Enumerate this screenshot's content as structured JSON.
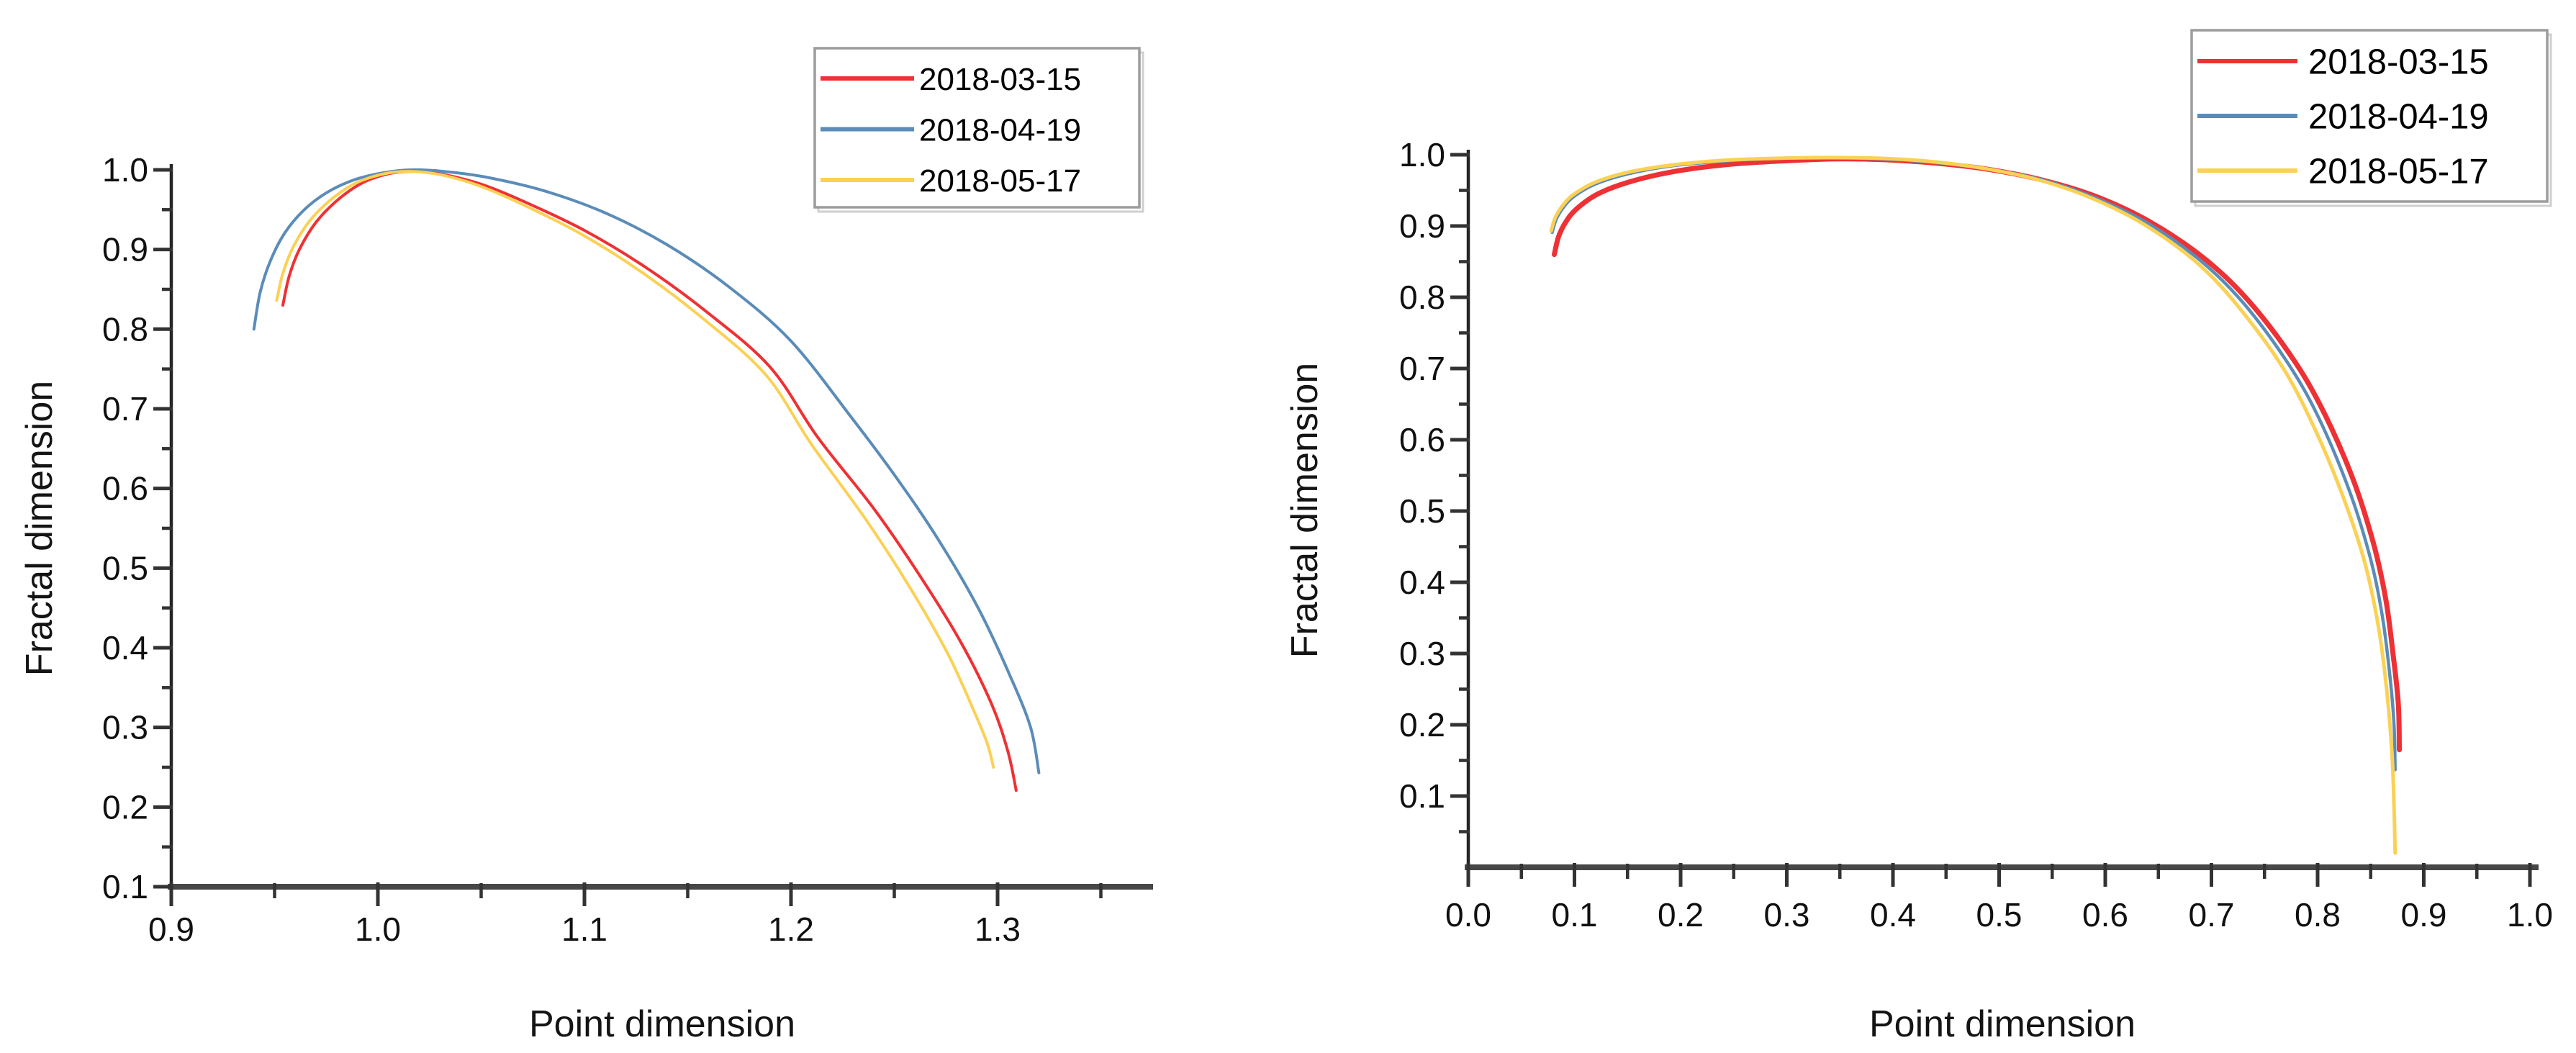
{
  "chart_data": [
    {
      "id": "left",
      "type": "line",
      "xlabel": "Point dimension",
      "ylabel": "Fractal dimension",
      "xlim": [
        0.9,
        1.375
      ],
      "ylim": [
        0.1,
        1.0
      ],
      "x_major_ticks": [
        0.9,
        1.0,
        1.1,
        1.2,
        1.3
      ],
      "x_minor_ticks": [
        0.95,
        1.05,
        1.15,
        1.25,
        1.35
      ],
      "y_major_ticks": [
        0.1,
        0.2,
        0.3,
        0.4,
        0.5,
        0.6,
        0.7,
        0.8,
        0.9,
        1.0
      ],
      "y_minor_ticks": [
        0.15,
        0.25,
        0.35,
        0.45,
        0.55,
        0.65,
        0.75,
        0.85,
        0.95
      ],
      "grid": false,
      "legend_position": "top-right-inside",
      "series": [
        {
          "name": "2018-03-15",
          "color": "#ee3134",
          "line_width": 4,
          "points": [
            [
              0.954,
              0.83
            ],
            [
              0.957,
              0.866
            ],
            [
              0.962,
              0.9
            ],
            [
              0.97,
              0.934
            ],
            [
              0.98,
              0.961
            ],
            [
              0.992,
              0.983
            ],
            [
              1.005,
              0.995
            ],
            [
              1.018,
              0.998
            ],
            [
              1.032,
              0.994
            ],
            [
              1.05,
              0.982
            ],
            [
              1.07,
              0.961
            ],
            [
              1.1,
              0.924
            ],
            [
              1.13,
              0.877
            ],
            [
              1.16,
              0.82
            ],
            [
              1.19,
              0.752
            ],
            [
              1.213,
              0.664
            ],
            [
              1.24,
              0.575
            ],
            [
              1.262,
              0.492
            ],
            [
              1.282,
              0.408
            ],
            [
              1.297,
              0.33
            ],
            [
              1.305,
              0.27
            ],
            [
              1.309,
              0.221
            ]
          ]
        },
        {
          "name": "2018-04-19",
          "color": "#5b8cb8",
          "line_width": 4,
          "points": [
            [
              0.94,
              0.8
            ],
            [
              0.943,
              0.846
            ],
            [
              0.948,
              0.886
            ],
            [
              0.955,
              0.921
            ],
            [
              0.964,
              0.949
            ],
            [
              0.975,
              0.971
            ],
            [
              0.988,
              0.987
            ],
            [
              1.002,
              0.996
            ],
            [
              1.016,
              1.0
            ],
            [
              1.032,
              0.998
            ],
            [
              1.052,
              0.991
            ],
            [
              1.08,
              0.974
            ],
            [
              1.11,
              0.946
            ],
            [
              1.14,
              0.906
            ],
            [
              1.17,
              0.853
            ],
            [
              1.2,
              0.785
            ],
            [
              1.229,
              0.69
            ],
            [
              1.252,
              0.61
            ],
            [
              1.272,
              0.533
            ],
            [
              1.291,
              0.448
            ],
            [
              1.306,
              0.365
            ],
            [
              1.316,
              0.3
            ],
            [
              1.32,
              0.243
            ]
          ]
        },
        {
          "name": "2018-05-17",
          "color": "#fbd155",
          "line_width": 4,
          "points": [
            [
              0.951,
              0.836
            ],
            [
              0.954,
              0.87
            ],
            [
              0.959,
              0.903
            ],
            [
              0.967,
              0.936
            ],
            [
              0.977,
              0.962
            ],
            [
              0.989,
              0.983
            ],
            [
              1.003,
              0.995
            ],
            [
              1.016,
              0.998
            ],
            [
              1.03,
              0.994
            ],
            [
              1.048,
              0.981
            ],
            [
              1.068,
              0.959
            ],
            [
              1.098,
              0.92
            ],
            [
              1.128,
              0.871
            ],
            [
              1.158,
              0.812
            ],
            [
              1.188,
              0.742
            ],
            [
              1.21,
              0.655
            ],
            [
              1.236,
              0.562
            ],
            [
              1.257,
              0.478
            ],
            [
              1.276,
              0.392
            ],
            [
              1.289,
              0.318
            ],
            [
              1.295,
              0.28
            ],
            [
              1.298,
              0.25
            ]
          ]
        }
      ]
    },
    {
      "id": "right",
      "type": "line",
      "xlabel": "Point dimension",
      "ylabel": "Fractal dimension",
      "xlim": [
        0.0,
        1.007
      ],
      "ylim": [
        0.0,
        1.0
      ],
      "x_major_ticks": [
        0.0,
        0.1,
        0.2,
        0.3,
        0.4,
        0.5,
        0.6,
        0.7,
        0.8,
        0.9,
        1.0
      ],
      "x_minor_ticks": [
        0.05,
        0.15,
        0.25,
        0.35,
        0.45,
        0.55,
        0.65,
        0.75,
        0.85,
        0.95
      ],
      "y_major_ticks": [
        0.1,
        0.2,
        0.3,
        0.4,
        0.5,
        0.6,
        0.7,
        0.8,
        0.9,
        1.0
      ],
      "y_minor_ticks": [
        0.05,
        0.15,
        0.25,
        0.35,
        0.45,
        0.55,
        0.65,
        0.75,
        0.85,
        0.95
      ],
      "grid": false,
      "legend_position": "top-right-inside",
      "series": [
        {
          "name": "2018-03-15",
          "color": "#ee3134",
          "line_width": 7,
          "points": [
            [
              0.081,
              0.86
            ],
            [
              0.085,
              0.885
            ],
            [
              0.092,
              0.906
            ],
            [
              0.102,
              0.924
            ],
            [
              0.122,
              0.945
            ],
            [
              0.152,
              0.962
            ],
            [
              0.192,
              0.976
            ],
            [
              0.242,
              0.986
            ],
            [
              0.292,
              0.991
            ],
            [
              0.342,
              0.994
            ],
            [
              0.392,
              0.993
            ],
            [
              0.442,
              0.988
            ],
            [
              0.492,
              0.979
            ],
            [
              0.542,
              0.964
            ],
            [
              0.592,
              0.941
            ],
            [
              0.642,
              0.906
            ],
            [
              0.692,
              0.856
            ],
            [
              0.732,
              0.8
            ],
            [
              0.772,
              0.724
            ],
            [
              0.802,
              0.65
            ],
            [
              0.832,
              0.55
            ],
            [
              0.852,
              0.458
            ],
            [
              0.864,
              0.378
            ],
            [
              0.871,
              0.3
            ],
            [
              0.876,
              0.23
            ],
            [
              0.877,
              0.165
            ]
          ]
        },
        {
          "name": "2018-04-19",
          "color": "#5b8cb8",
          "line_width": 4.5,
          "points": [
            [
              0.079,
              0.891
            ],
            [
              0.083,
              0.91
            ],
            [
              0.09,
              0.927
            ],
            [
              0.1,
              0.942
            ],
            [
              0.12,
              0.959
            ],
            [
              0.15,
              0.973
            ],
            [
              0.19,
              0.984
            ],
            [
              0.24,
              0.991
            ],
            [
              0.29,
              0.995
            ],
            [
              0.34,
              0.996
            ],
            [
              0.39,
              0.994
            ],
            [
              0.44,
              0.989
            ],
            [
              0.49,
              0.98
            ],
            [
              0.54,
              0.965
            ],
            [
              0.59,
              0.94
            ],
            [
              0.64,
              0.904
            ],
            [
              0.69,
              0.851
            ],
            [
              0.73,
              0.792
            ],
            [
              0.77,
              0.712
            ],
            [
              0.8,
              0.634
            ],
            [
              0.83,
              0.528
            ],
            [
              0.85,
              0.432
            ],
            [
              0.861,
              0.352
            ],
            [
              0.868,
              0.27
            ],
            [
              0.872,
              0.2
            ],
            [
              0.873,
              0.137
            ]
          ]
        },
        {
          "name": "2018-05-17",
          "color": "#fbd155",
          "line_width": 5,
          "points": [
            [
              0.078,
              0.893
            ],
            [
              0.082,
              0.912
            ],
            [
              0.089,
              0.929
            ],
            [
              0.099,
              0.944
            ],
            [
              0.119,
              0.961
            ],
            [
              0.149,
              0.975
            ],
            [
              0.189,
              0.985
            ],
            [
              0.239,
              0.992
            ],
            [
              0.289,
              0.995
            ],
            [
              0.339,
              0.996
            ],
            [
              0.389,
              0.995
            ],
            [
              0.439,
              0.99
            ],
            [
              0.489,
              0.98
            ],
            [
              0.539,
              0.964
            ],
            [
              0.589,
              0.938
            ],
            [
              0.639,
              0.9
            ],
            [
              0.689,
              0.845
            ],
            [
              0.729,
              0.78
            ],
            [
              0.769,
              0.697
            ],
            [
              0.799,
              0.61
            ],
            [
              0.824,
              0.52
            ],
            [
              0.844,
              0.43
            ],
            [
              0.857,
              0.34
            ],
            [
              0.865,
              0.25
            ],
            [
              0.87,
              0.16
            ],
            [
              0.872,
              0.085
            ],
            [
              0.873,
              0.02
            ]
          ]
        }
      ]
    }
  ],
  "colors": {
    "axis_x_line": "#474747",
    "axis_y_line": "#262626",
    "tick": "#333333",
    "tick_label": "#101010",
    "legend_border": "#9c9c9c",
    "legend_shadow": "#cfcfcf",
    "background": "#ffffff"
  }
}
